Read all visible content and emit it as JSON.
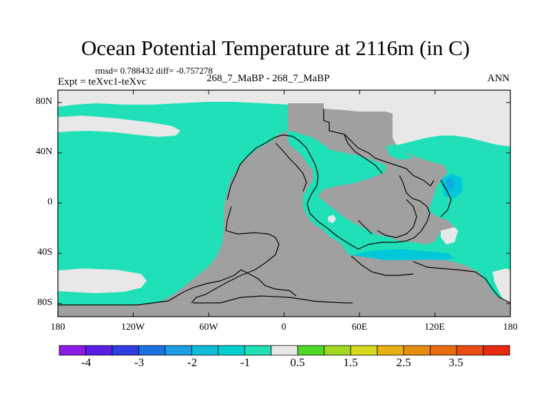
{
  "figure": {
    "title": "Ocean Potential Temperature at 2116m (in C)",
    "stats_text": "rmsd= 0.788432 diff= -0.757278",
    "left_label": "Expt = teXvc1-teXvc",
    "center_label": "268_7_MaBP - 268_7_MaBP",
    "right_label": "ANN"
  },
  "map": {
    "projection": "cylindrical-equidistant",
    "lon_range": [
      -180,
      180
    ],
    "lat_range": [
      -90,
      90
    ],
    "x_ticks": [
      "180",
      "120W",
      "60W",
      "0",
      "60E",
      "120E",
      "180"
    ],
    "y_ticks": [
      "80N",
      "40N",
      "0",
      "40S",
      "80S"
    ],
    "land_color": "#a0a0a0",
    "dominant_field_color": "#20e0b8",
    "field_description_colors": {
      "between_-1_and_0.5": "#20e0b8",
      "between_-1.5_and_-1": "#00c8d8",
      "between_-2_and_-1.5": "#10a8e0",
      "near_zero_white": "#e8e8e8"
    }
  },
  "colorbar": {
    "colors": [
      "#8c1ae6",
      "#5a1ee6",
      "#2e3ee0",
      "#1a72e0",
      "#1a9ee6",
      "#10bcd8",
      "#00cfd0",
      "#20e0b8",
      "#e8e8e8",
      "#50d828",
      "#9ed820",
      "#d8d820",
      "#e8b010",
      "#e88c10",
      "#e86c10",
      "#e84c10",
      "#e82a10"
    ],
    "labels": [
      "-4",
      "-3",
      "-2",
      "-1",
      "0.5",
      "1.5",
      "2.5",
      "3.5"
    ]
  }
}
